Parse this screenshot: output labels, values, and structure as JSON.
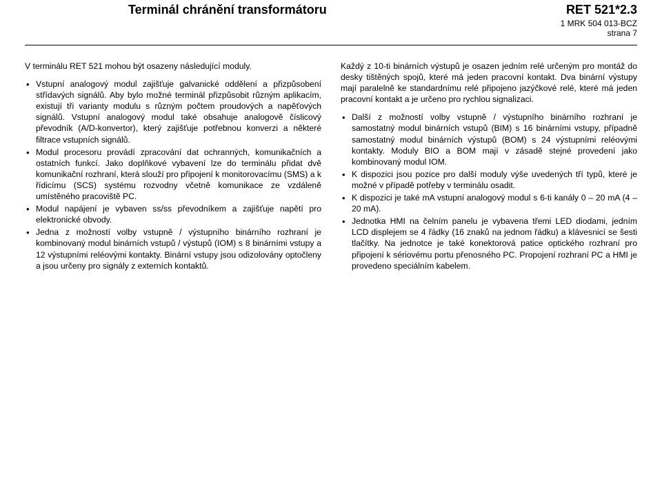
{
  "header": {
    "title": "Terminál chránění transformátoru",
    "product": "RET 521*2.3",
    "docnum": "1 MRK 504 013-BCZ",
    "pagenum": "strana  7"
  },
  "leftCol": {
    "intro": "V terminálu RET 521 mohou být osazeny následující moduly.",
    "bullets": [
      "Vstupní analogový modul zajišťuje galvanické oddělení a přizpůsobení střídavých signálů. Aby bylo možné terminál přizpůsobit různým aplikacím, existují tři varianty modulu s různým počtem proudových a napěťových signálů. Vstupní analogový modul také obsahuje analogově číslicový převodník (A/D-konvertor), který zajišťuje potřebnou konverzi a některé filtrace vstupních signálů.",
      "Modul procesoru provádí zpracování dat ochranných, komunikačních a ostatních funkcí. Jako doplňkové vybavení lze do terminálu přidat dvě komunikační rozhraní, která slouží pro připojení k monitorovacímu (SMS) a k řídicímu (SCS) systému rozvodny včetně komunikace ze vzdáleně umístěného pracoviště PC.",
      "Modul napájení je vybaven ss/ss převodníkem a zajišťuje napětí pro elektronické obvody.",
      "Jedna z možností volby vstupně / výstupního binárního rozhraní je kombinovaný modul binárních vstupů / výstupů (IOM) s 8 binárními vstupy a 12 výstupními reléovými kontakty. Binární vstupy jsou odizolovány optočleny a jsou určeny pro signály z externích kontaktů."
    ]
  },
  "rightCol": {
    "intro": "Každý z 10-ti binárních výstupů je osazen jedním relé určeným pro montáž do desky tištěných spojů, které má jeden pracovní kontakt. Dva binární výstupy mají paralelně ke standardnímu relé připojeno jazýčkové relé, které má jeden pracovní kontakt a je určeno pro rychlou signalizaci.",
    "bullets": [
      "Další z možností volby vstupně / výstupního binárního rozhraní je samostatný modul binárních vstupů (BIM) s 16 binárními vstupy, případně samostatný modul binárních výstupů (BOM) s 24 výstupními reléovými kontakty. Moduly BIO a BOM mají v zásadě stejné provedení jako kombinovaný modul IOM.",
      "K dispozici jsou pozice pro další moduly výše uvedených tří typů, které je možné v případě potřeby v terminálu osadit.",
      "K dispozici je také mA vstupní analogový modul s 6-ti kanály 0 – 20 mA (4 – 20 mA).",
      "Jednotka HMI na čelním panelu je vybavena třemi LED diodami, jedním LCD displejem se 4 řádky (16 znaků na jednom řádku) a klávesnicí se šesti tlačítky. Na jednotce je také konektorová patice optického rozhraní pro připojení k sériovému portu přenosného PC. Propojení rozhraní PC a HMI je provedeno speciálním kabelem."
    ]
  }
}
